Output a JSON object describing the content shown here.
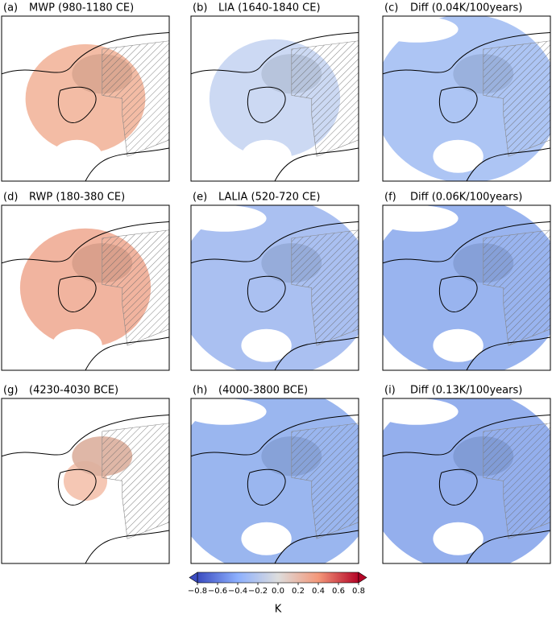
{
  "panels": [
    {
      "label": "(a)",
      "title": "MWP (980-1180 CE)"
    },
    {
      "label": "(b)",
      "title": "LIA (1640-1840 CE)"
    },
    {
      "label": "(c)",
      "title": "Diff (0.04K/100years)"
    },
    {
      "label": "(d)",
      "title": "RWP (180-380 CE)"
    },
    {
      "label": "(e)",
      "title": "LALIA (520-720 CE)"
    },
    {
      "label": "(f)",
      "title": "Diff (0.06K/100years)"
    },
    {
      "label": "(g)",
      "title": "(4230-4030 BCE)"
    },
    {
      "label": "(h)",
      "title": "(4000-3800 BCE)"
    },
    {
      "label": "(i)",
      "title": "Diff (0.13K/100years)"
    }
  ],
  "colorbar": {
    "label": "K",
    "lim": [
      -0.8,
      0.8
    ],
    "ticks": [
      {
        "value": -0.8,
        "label": "−0.8"
      },
      {
        "value": -0.6,
        "label": "−0.6"
      },
      {
        "value": -0.4,
        "label": "−0.4"
      },
      {
        "value": -0.2,
        "label": "−0.2"
      },
      {
        "value": 0,
        "label": "0.0"
      },
      0.2,
      0.4,
      0.6,
      0.8
    ]
  }
}
